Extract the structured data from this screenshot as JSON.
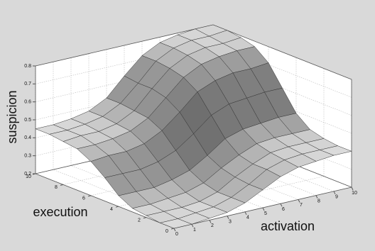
{
  "chart_data": {
    "type": "surface",
    "x_label": "activation",
    "y_label": "execution",
    "z_label": "suspicion",
    "x": [
      0,
      1,
      2,
      3,
      4,
      5,
      6,
      7,
      8,
      9,
      10
    ],
    "y": [
      0,
      1,
      2,
      3,
      4,
      5,
      6,
      7,
      8,
      9,
      10
    ],
    "z": [
      [
        0.2,
        0.2,
        0.21,
        0.22,
        0.25,
        0.3,
        0.35,
        0.38,
        0.39,
        0.4,
        0.4
      ],
      [
        0.2,
        0.2,
        0.21,
        0.22,
        0.25,
        0.3,
        0.36,
        0.39,
        0.4,
        0.4,
        0.4
      ],
      [
        0.21,
        0.21,
        0.21,
        0.22,
        0.25,
        0.31,
        0.36,
        0.4,
        0.41,
        0.41,
        0.41
      ],
      [
        0.22,
        0.22,
        0.23,
        0.24,
        0.27,
        0.33,
        0.38,
        0.42,
        0.43,
        0.43,
        0.43
      ],
      [
        0.26,
        0.26,
        0.26,
        0.28,
        0.31,
        0.37,
        0.44,
        0.47,
        0.48,
        0.49,
        0.49
      ],
      [
        0.33,
        0.33,
        0.33,
        0.35,
        0.39,
        0.46,
        0.54,
        0.58,
        0.59,
        0.6,
        0.6
      ],
      [
        0.39,
        0.4,
        0.4,
        0.42,
        0.47,
        0.55,
        0.64,
        0.68,
        0.7,
        0.7,
        0.71
      ],
      [
        0.43,
        0.43,
        0.44,
        0.46,
        0.51,
        0.6,
        0.69,
        0.74,
        0.76,
        0.77,
        0.77
      ],
      [
        0.44,
        0.45,
        0.45,
        0.47,
        0.52,
        0.62,
        0.71,
        0.76,
        0.78,
        0.78,
        0.79
      ],
      [
        0.45,
        0.45,
        0.46,
        0.48,
        0.53,
        0.62,
        0.72,
        0.77,
        0.79,
        0.79,
        0.8
      ],
      [
        0.45,
        0.45,
        0.46,
        0.48,
        0.53,
        0.63,
        0.72,
        0.77,
        0.79,
        0.8,
        0.8
      ]
    ],
    "xlim": [
      0,
      10
    ],
    "ylim": [
      0,
      10
    ],
    "zlim": [
      0.2,
      0.8
    ],
    "xticks": [
      0,
      1,
      2,
      3,
      4,
      5,
      6,
      7,
      8,
      9,
      10
    ],
    "yticks": [
      0,
      2,
      4,
      6,
      8,
      10
    ],
    "zticks": [
      0.2,
      0.3,
      0.4,
      0.5,
      0.6,
      0.7,
      0.8
    ],
    "grid": true
  }
}
